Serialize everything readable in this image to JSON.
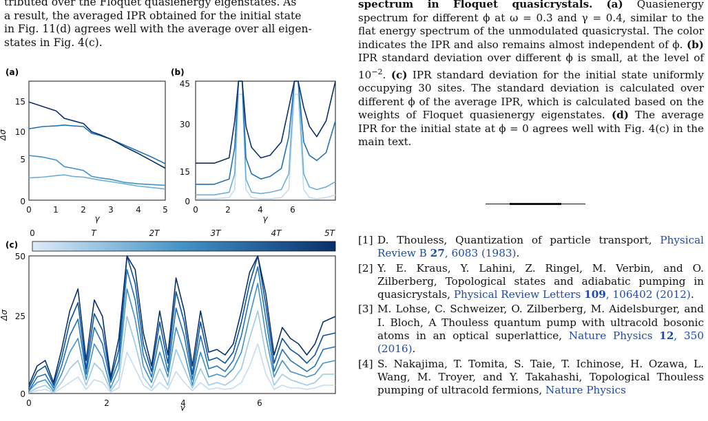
{
  "left_text": {
    "line1": "tributed over the Floquet quasienergy eigenstates. As",
    "line2": "a result, the averaged IPR obtained for the initial state",
    "line3": "in Fig. 11(d) agrees well with the average over all eigen-",
    "line4": "states in Fig. 4(c)."
  },
  "figure": {
    "panel_a": {
      "label": "(a)",
      "ylabel": "Δσ",
      "xlabel": "γ",
      "xticks": [
        "0",
        "1",
        "2",
        "3",
        "4",
        "5"
      ],
      "yticks": [
        "0",
        "5",
        "10",
        "15"
      ]
    },
    "panel_b": {
      "label": "(b)",
      "xlabel": "γ",
      "xticks": [
        "0",
        "2",
        "4",
        "6"
      ],
      "yticks": [
        "0",
        "15",
        "30",
        "45"
      ]
    },
    "panel_c": {
      "label": "(c)",
      "ylabel": "Δσ",
      "xlabel": "γ",
      "xticks": [
        "0",
        "2",
        "4",
        "6"
      ],
      "yticks": [
        "0",
        "25",
        "50"
      ],
      "colorbar_ticks": [
        "0",
        "T",
        "2T",
        "3T",
        "4T",
        "5T"
      ]
    },
    "colors": [
      "#c6dbef",
      "#9ecae1",
      "#6baed6",
      "#4292c6",
      "#2171b5",
      "#08519c",
      "#08306b"
    ]
  },
  "chart_data": [
    {
      "type": "line",
      "panel": "a",
      "xlabel": "γ",
      "ylabel": "Δσ",
      "xlim": [
        0,
        5
      ],
      "ylim": [
        0,
        16
      ],
      "series": [
        {
          "x": [
            0,
            0.5,
            1,
            1.3,
            1.6,
            2,
            2.3,
            2.6,
            3,
            3.5,
            4,
            4.5,
            5
          ],
          "values": [
            13.2,
            12.6,
            12.0,
            11.0,
            10.7,
            10.3,
            9.2,
            8.8,
            8.2,
            7.2,
            6.3,
            5.3,
            4.3
          ]
        },
        {
          "x": [
            0,
            0.5,
            1,
            1.3,
            1.6,
            2,
            2.3,
            2.6,
            3,
            3.5,
            4,
            4.5,
            5
          ],
          "values": [
            9.6,
            9.9,
            10.0,
            10.1,
            10.0,
            9.9,
            9.0,
            8.7,
            8.2,
            7.4,
            6.6,
            5.8,
            4.9
          ]
        },
        {
          "x": [
            0,
            0.5,
            1,
            1.3,
            1.6,
            2,
            2.3,
            2.6,
            3,
            3.5,
            4,
            4.5,
            5
          ],
          "values": [
            6.0,
            5.8,
            5.4,
            4.5,
            4.3,
            4.0,
            3.2,
            3.0,
            2.8,
            2.4,
            2.2,
            2.1,
            2.0
          ]
        },
        {
          "x": [
            0,
            0.5,
            1,
            1.3,
            1.6,
            2,
            2.3,
            2.6,
            3,
            3.5,
            4,
            4.5,
            5
          ],
          "values": [
            3.0,
            3.1,
            3.3,
            3.4,
            3.2,
            3.1,
            2.9,
            2.7,
            2.5,
            2.2,
            1.9,
            1.7,
            1.5
          ]
        }
      ]
    },
    {
      "type": "line",
      "panel": "b",
      "xlabel": "γ",
      "xlim": [
        0,
        7.5
      ],
      "ylim": [
        0,
        45
      ],
      "series": [
        {
          "x": [
            0,
            1,
            1.8,
            2.1,
            2.3,
            2.5,
            2.7,
            3.0,
            3.5,
            4.0,
            4.6,
            5.0,
            5.3,
            5.5,
            5.8,
            6.1,
            6.5,
            7.0,
            7.5
          ],
          "values": [
            14,
            14,
            16,
            30,
            45,
            45,
            28,
            20,
            16,
            17,
            22,
            35,
            45,
            45,
            35,
            28,
            24,
            30,
            45
          ]
        },
        {
          "x": [
            0,
            1,
            1.8,
            2.1,
            2.3,
            2.5,
            2.7,
            3.0,
            3.5,
            4.0,
            4.6,
            5.0,
            5.3,
            5.5,
            5.8,
            6.1,
            6.5,
            7.0,
            7.5
          ],
          "values": [
            6,
            6,
            8,
            20,
            45,
            45,
            16,
            10,
            8,
            9,
            12,
            24,
            45,
            45,
            22,
            17,
            15,
            18,
            30
          ]
        },
        {
          "x": [
            0,
            1,
            1.8,
            2.1,
            2.3,
            2.5,
            2.7,
            3.0,
            3.5,
            4.0,
            4.6,
            5.0,
            5.3,
            5.5,
            5.8,
            6.1,
            6.5,
            7.0,
            7.5
          ],
          "values": [
            2,
            2,
            3,
            10,
            45,
            45,
            8,
            3,
            2.5,
            3,
            4,
            10,
            45,
            45,
            10,
            5,
            4,
            5,
            7
          ]
        },
        {
          "x": [
            0,
            1,
            1.8,
            2.1,
            2.3,
            2.5,
            2.7,
            3.0,
            3.5,
            4.0,
            4.6,
            5.0,
            5.3,
            5.5,
            5.8,
            6.1,
            6.5,
            7.0,
            7.5
          ],
          "values": [
            0.5,
            0.5,
            1,
            4,
            40,
            40,
            4,
            1,
            0.5,
            0.5,
            1,
            4,
            40,
            40,
            4,
            1,
            0.5,
            1,
            2
          ]
        }
      ]
    },
    {
      "type": "line",
      "panel": "c",
      "xlabel": "γ",
      "ylabel": "Δσ",
      "xlim": [
        0,
        7.5
      ],
      "ylim": [
        0,
        50
      ],
      "series": [
        {
          "x": [
            0,
            0.2,
            0.4,
            0.6,
            0.8,
            1.0,
            1.2,
            1.4,
            1.6,
            1.8,
            2.0,
            2.2,
            2.4,
            2.6,
            2.8,
            3.0,
            3.2,
            3.4,
            3.6,
            3.8,
            4.0,
            4.2,
            4.4,
            4.6,
            4.8,
            5.0,
            5.2,
            5.4,
            5.6,
            5.8,
            6.0,
            6.2,
            6.4,
            6.6,
            6.8,
            7.0,
            7.2,
            7.5
          ],
          "values": [
            3,
            10,
            12,
            4,
            16,
            30,
            38,
            12,
            34,
            28,
            6,
            20,
            50,
            45,
            22,
            10,
            30,
            14,
            42,
            30,
            10,
            30,
            15,
            16,
            14,
            18,
            30,
            44,
            50,
            36,
            14,
            24,
            20,
            18,
            14,
            18,
            26,
            28
          ]
        },
        {
          "x": [
            0,
            0.2,
            0.4,
            0.6,
            0.8,
            1.0,
            1.2,
            1.4,
            1.6,
            1.8,
            2.0,
            2.2,
            2.4,
            2.6,
            2.8,
            3.0,
            3.2,
            3.4,
            3.6,
            3.8,
            4.0,
            4.2,
            4.4,
            4.6,
            4.8,
            5.0,
            5.2,
            5.4,
            5.6,
            5.8,
            6.0,
            6.2,
            6.4,
            6.6,
            6.8,
            7.0,
            7.2,
            7.5
          ],
          "values": [
            2,
            8,
            10,
            3,
            13,
            26,
            33,
            9,
            29,
            23,
            5,
            16,
            50,
            40,
            18,
            8,
            26,
            11,
            37,
            26,
            7,
            26,
            12,
            13,
            11,
            15,
            26,
            40,
            50,
            32,
            11,
            20,
            16,
            14,
            11,
            14,
            21,
            22
          ]
        },
        {
          "x": [
            0,
            0.2,
            0.4,
            0.6,
            0.8,
            1.0,
            1.2,
            1.4,
            1.6,
            1.8,
            2.0,
            2.2,
            2.4,
            2.6,
            2.8,
            3.0,
            3.2,
            3.4,
            3.6,
            3.8,
            4.0,
            4.2,
            4.4,
            4.6,
            4.8,
            5.0,
            5.2,
            5.4,
            5.6,
            5.8,
            6.0,
            6.2,
            6.4,
            6.6,
            6.8,
            7.0,
            7.2,
            7.5
          ],
          "values": [
            1,
            6,
            7,
            2,
            10,
            21,
            27,
            7,
            24,
            18,
            4,
            12,
            45,
            34,
            14,
            6,
            21,
            8,
            31,
            21,
            5,
            21,
            9,
            10,
            8,
            12,
            21,
            35,
            46,
            27,
            8,
            16,
            12,
            10,
            8,
            10,
            16,
            17
          ]
        },
        {
          "x": [
            0,
            0.2,
            0.4,
            0.6,
            0.8,
            1.0,
            1.2,
            1.4,
            1.6,
            1.8,
            2.0,
            2.2,
            2.4,
            2.6,
            2.8,
            3.0,
            3.2,
            3.4,
            3.6,
            3.8,
            4.0,
            4.2,
            4.4,
            4.6,
            4.8,
            5.0,
            5.2,
            5.4,
            5.6,
            5.8,
            6.0,
            6.2,
            6.4,
            6.6,
            6.8,
            7.0,
            7.2,
            7.5
          ],
          "values": [
            1,
            4,
            5,
            1,
            7,
            15,
            20,
            5,
            18,
            13,
            2,
            9,
            38,
            27,
            10,
            4,
            15,
            6,
            24,
            15,
            3,
            15,
            6,
            7,
            6,
            9,
            15,
            28,
            40,
            21,
            6,
            12,
            8,
            7,
            6,
            7,
            11,
            12
          ]
        },
        {
          "x": [
            0,
            0.2,
            0.4,
            0.6,
            0.8,
            1.0,
            1.2,
            1.4,
            1.6,
            1.8,
            2.0,
            2.2,
            2.4,
            2.6,
            2.8,
            3.0,
            3.2,
            3.4,
            3.6,
            3.8,
            4.0,
            4.2,
            4.4,
            4.6,
            4.8,
            5.0,
            5.2,
            5.4,
            5.6,
            5.8,
            6.0,
            6.2,
            6.4,
            6.6,
            6.8,
            7.0,
            7.2,
            7.5
          ],
          "values": [
            0.5,
            2,
            3,
            0.5,
            4,
            9,
            12,
            3,
            11,
            8,
            1,
            5,
            28,
            18,
            6,
            2,
            9,
            3,
            16,
            9,
            2,
            9,
            3,
            4,
            3,
            5,
            9,
            20,
            30,
            14,
            3,
            7,
            5,
            4,
            3,
            4,
            7,
            7
          ]
        },
        {
          "x": [
            0,
            0.2,
            0.4,
            0.6,
            0.8,
            1.0,
            1.2,
            1.4,
            1.6,
            1.8,
            2.0,
            2.2,
            2.4,
            2.6,
            2.8,
            3.0,
            3.2,
            3.4,
            3.6,
            3.8,
            4.0,
            4.2,
            4.4,
            4.6,
            4.8,
            5.0,
            5.2,
            5.4,
            5.6,
            5.8,
            6.0,
            6.2,
            6.4,
            6.6,
            6.8,
            7.0,
            7.2,
            7.5
          ],
          "values": [
            0.2,
            1,
            1.5,
            0.2,
            2,
            4,
            6,
            1.5,
            5,
            4,
            0.5,
            2,
            15,
            9,
            3,
            1,
            4,
            1.5,
            8,
            4,
            1,
            4,
            1.5,
            2,
            1.5,
            2,
            4,
            10,
            18,
            7,
            1.5,
            3,
            2,
            2,
            1.5,
            2,
            3,
            3
          ]
        }
      ]
    }
  ],
  "caption": {
    "title_tail": "spectrum in Floquet quasicrystals.",
    "a_label": "(a)",
    "a_text": " Quasienergy spectrum for different ϕ at ω = 0.3 and γ = 0.4, similar to the flat energy spectrum of the unmodulated quasicrystal. The color indicates the IPR and also remains almost independent of ϕ. ",
    "b_label": "(b)",
    "b_text": " IPR standard deviation over different ϕ is small, at the level of 10",
    "b_exp": "−2",
    "b_text2": ". ",
    "c_label": "(c)",
    "c_text": " IPR standard deviation for the initial state uniformly occupying 30 sites. The standard deviation is calculated over different ϕ of the average IPR, which is calculated based on the weights of Floquet quasienergy eigenstates. ",
    "d_label": "(d)",
    "d_text": " The average IPR for the initial state at ϕ = 0 agrees well with Fig. 4(c) in the main text."
  },
  "references": [
    {
      "num": "[1]",
      "text": "D. Thouless, Quantization of particle transport, ",
      "link": "Physical Review B ",
      "vol": "27",
      "tail": ", 6083 (1983)",
      "end": "."
    },
    {
      "num": "[2]",
      "text": "Y. E. Kraus, Y. Lahini, Z. Ringel, M. Verbin, and O. Zilberberg, Topological states and adiabatic pumping in quasicrystals, ",
      "link": "Physical Review Letters ",
      "vol": "109",
      "tail": ", 106402 (2012)",
      "end": "."
    },
    {
      "num": "[3]",
      "text": "M. Lohse, C. Schweizer, O. Zilberberg, M. Aidelsburger, and I. Bloch, A Thouless quantum pump with ultracold bosonic atoms in an optical superlattice, ",
      "link": "Nature Physics ",
      "vol": "12",
      "tail": ", 350 (2016)",
      "end": "."
    },
    {
      "num": "[4]",
      "text": "S. Nakajima, T. Tomita, S. Taie, T. Ichinose, H. Ozawa, L. Wang, M. Troyer, and Y. Takahashi, Topological Thouless pumping of ultracold fermions, ",
      "link": "Nature Physics",
      "vol": "",
      "tail": "",
      "end": ""
    }
  ]
}
